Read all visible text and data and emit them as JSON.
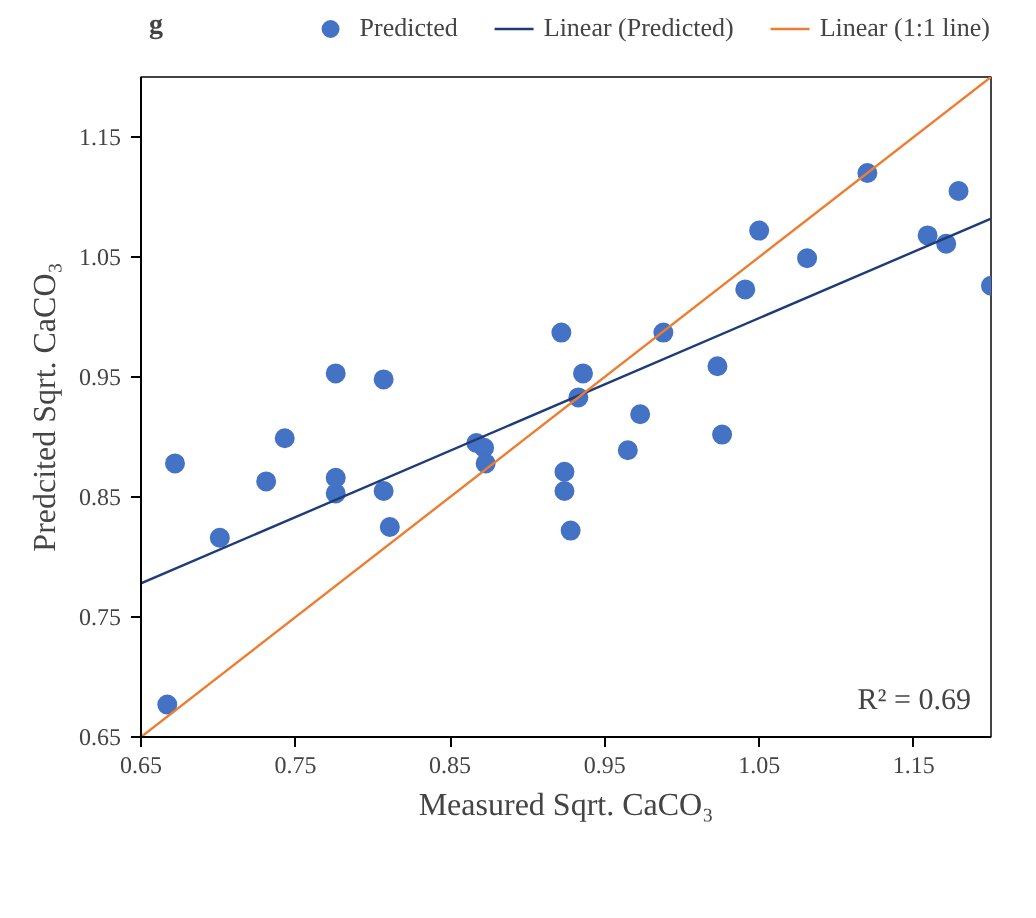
{
  "chart_data": {
    "type": "scatter",
    "title": "g",
    "xlabel": "Measured Sqrt. CaCO₃",
    "ylabel": "Predcited Sqrt. CaCO₃",
    "xlim": [
      0.65,
      1.2
    ],
    "ylim": [
      0.65,
      1.2
    ],
    "xticks": [
      0.65,
      0.75,
      0.85,
      0.95,
      1.05,
      1.15
    ],
    "yticks": [
      0.65,
      0.75,
      0.85,
      0.95,
      1.05,
      1.15
    ],
    "grid": false,
    "legend": "top",
    "series": [
      {
        "name": "Predicted",
        "marker": "circle",
        "color": "#4472c4",
        "x": [
          0.667,
          0.672,
          0.701,
          0.731,
          0.743,
          0.776,
          0.776,
          0.776,
          0.807,
          0.807,
          0.811,
          0.867,
          0.872,
          0.873,
          0.922,
          0.936,
          0.933,
          0.924,
          0.924,
          0.928,
          0.965,
          0.973,
          0.988,
          1.023,
          1.026,
          1.041,
          1.05,
          1.081,
          1.12,
          1.159,
          1.171,
          1.179,
          1.2
        ],
        "values": [
          0.677,
          0.878,
          0.816,
          0.863,
          0.899,
          0.953,
          0.866,
          0.853,
          0.948,
          0.855,
          0.825,
          0.895,
          0.891,
          0.878,
          0.987,
          0.953,
          0.933,
          0.871,
          0.855,
          0.822,
          0.889,
          0.919,
          0.987,
          0.959,
          0.902,
          1.023,
          1.072,
          1.049,
          1.12,
          1.068,
          1.061,
          1.105,
          1.026
        ]
      },
      {
        "name": "Linear (Predicted)",
        "type": "line",
        "color": "#1f3c77",
        "x": [
          0.65,
          1.2
        ],
        "values": [
          0.778,
          1.082
        ]
      },
      {
        "name": "Linear (1:1 line)",
        "type": "line",
        "color": "#ed7d31",
        "x": [
          0.65,
          1.2
        ],
        "values": [
          0.65,
          1.2
        ]
      }
    ],
    "annotations": [
      "R² = 0.69"
    ]
  }
}
